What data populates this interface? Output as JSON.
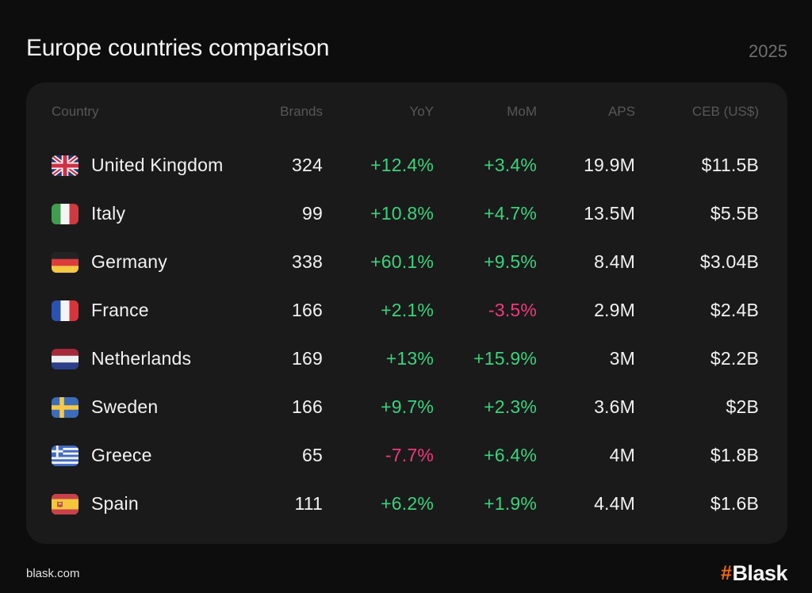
{
  "header": {
    "title": "Europe countries comparison",
    "year": "2025"
  },
  "chart_data": {
    "type": "table",
    "columns": [
      "Country",
      "Brands",
      "YoY",
      "MoM",
      "APS",
      "CEB (US$)"
    ],
    "rows": [
      {
        "country": "United Kingdom",
        "flag": "gb",
        "brands": "324",
        "yoy": "+12.4%",
        "mom": "+3.4%",
        "aps": "19.9M",
        "ceb": "$11.5B"
      },
      {
        "country": "Italy",
        "flag": "it",
        "brands": "99",
        "yoy": "+10.8%",
        "mom": "+4.7%",
        "aps": "13.5M",
        "ceb": "$5.5B"
      },
      {
        "country": "Germany",
        "flag": "de",
        "brands": "338",
        "yoy": "+60.1%",
        "mom": "+9.5%",
        "aps": "8.4M",
        "ceb": "$3.04B"
      },
      {
        "country": "France",
        "flag": "fr",
        "brands": "166",
        "yoy": "+2.1%",
        "mom": "-3.5%",
        "aps": "2.9M",
        "ceb": "$2.4B"
      },
      {
        "country": "Netherlands",
        "flag": "nl",
        "brands": "169",
        "yoy": "+13%",
        "mom": "+15.9%",
        "aps": "3M",
        "ceb": "$2.2B"
      },
      {
        "country": "Sweden",
        "flag": "se",
        "brands": "166",
        "yoy": "+9.7%",
        "mom": "+2.3%",
        "aps": "3.6M",
        "ceb": "$2B"
      },
      {
        "country": "Greece",
        "flag": "gr",
        "brands": "65",
        "yoy": "-7.7%",
        "mom": "+6.4%",
        "aps": "4M",
        "ceb": "$1.8B"
      },
      {
        "country": "Spain",
        "flag": "es",
        "brands": "111",
        "yoy": "+6.2%",
        "mom": "+1.9%",
        "aps": "4.4M",
        "ceb": "$1.6B"
      }
    ]
  },
  "footer": {
    "site": "blask.com",
    "brand_mark": "#",
    "brand_name": "Blask"
  },
  "colors": {
    "positive": "#37d47e",
    "negative": "#f0397c",
    "accent_orange": "#f8690a",
    "card_bg": "#1a1a1a",
    "page_bg": "#0d0d0d"
  }
}
